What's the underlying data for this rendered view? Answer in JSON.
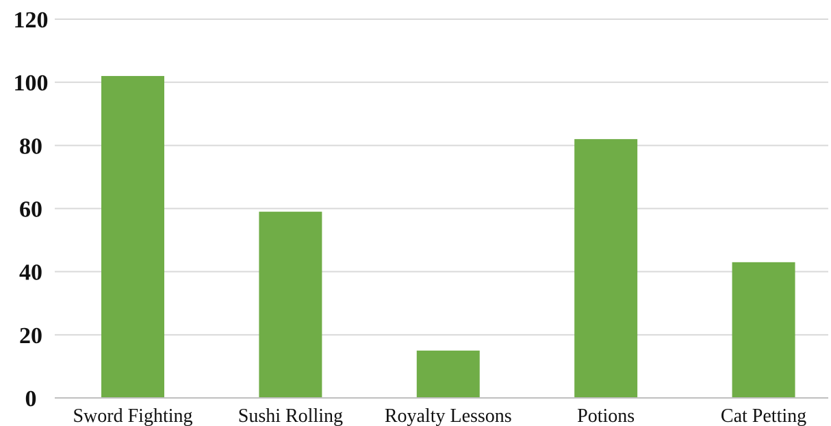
{
  "chart_data": {
    "type": "bar",
    "categories": [
      "Sword Fighting",
      "Sushi Rolling",
      "Royalty Lessons",
      "Potions",
      "Cat Petting"
    ],
    "values": [
      102,
      59,
      15,
      82,
      43
    ],
    "title": "",
    "xlabel": "",
    "ylabel": "",
    "ylim": [
      0,
      120
    ],
    "yticks": [
      "0",
      "20",
      "40",
      "60",
      "80",
      "100",
      "120"
    ],
    "grid": true,
    "legend": "none",
    "colors": {
      "bar": "#70ad47",
      "grid": "#d9d9d9",
      "axis": "#bfbfbf"
    }
  }
}
